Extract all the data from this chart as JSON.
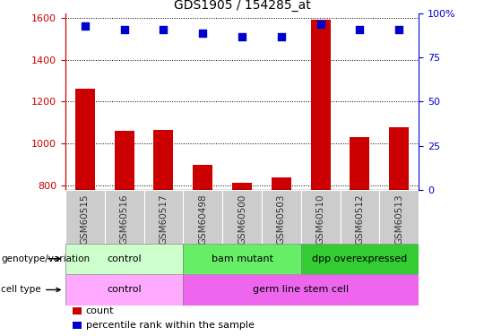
{
  "title": "GDS1905 / 154285_at",
  "samples": [
    "GSM60515",
    "GSM60516",
    "GSM60517",
    "GSM60498",
    "GSM60500",
    "GSM60503",
    "GSM60510",
    "GSM60512",
    "GSM60513"
  ],
  "counts": [
    1260,
    1060,
    1065,
    900,
    815,
    840,
    1590,
    1030,
    1080
  ],
  "percentiles": [
    93,
    91,
    91,
    89,
    87,
    87,
    94,
    91,
    91
  ],
  "ylim_left": [
    780,
    1620
  ],
  "ylim_right": [
    0,
    100
  ],
  "yticks_left": [
    800,
    1000,
    1200,
    1400,
    1600
  ],
  "yticks_right": [
    0,
    25,
    50,
    75,
    100
  ],
  "bar_color": "#cc0000",
  "dot_color": "#0000cc",
  "bar_width": 0.5,
  "genotype_groups": [
    {
      "label": "control",
      "start": 0,
      "end": 3,
      "color": "#ccffcc"
    },
    {
      "label": "bam mutant",
      "start": 3,
      "end": 6,
      "color": "#66ee66"
    },
    {
      "label": "dpp overexpressed",
      "start": 6,
      "end": 9,
      "color": "#33cc33"
    }
  ],
  "celltype_groups": [
    {
      "label": "control",
      "start": 0,
      "end": 3,
      "color": "#ffaaff"
    },
    {
      "label": "germ line stem cell",
      "start": 3,
      "end": 9,
      "color": "#ee66ee"
    }
  ],
  "row_labels": [
    "genotype/variation",
    "cell type"
  ],
  "legend_items": [
    {
      "color": "#cc0000",
      "label": "count"
    },
    {
      "color": "#0000cc",
      "label": "percentile rank within the sample"
    }
  ],
  "xticklabel_color": "#333333",
  "left_axis_color": "#cc0000",
  "right_axis_color": "#0000cc",
  "grid_color": "#000000",
  "xtick_bg_color": "#cccccc",
  "fig_bg_color": "#ffffff"
}
